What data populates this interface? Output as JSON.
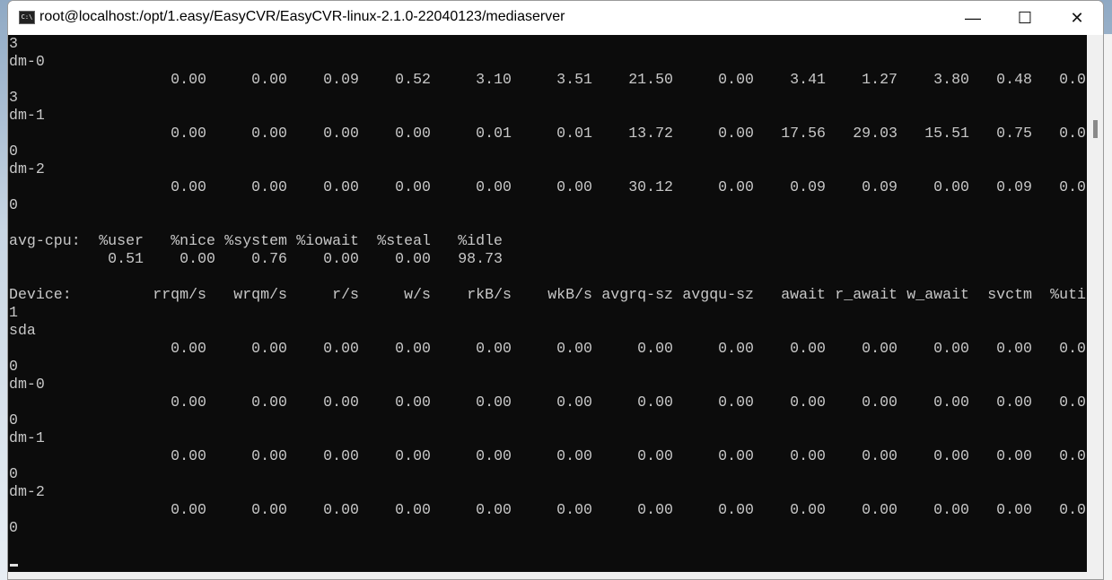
{
  "window": {
    "title": "root@localhost:/opt/1.easy/EasyCVR/EasyCVR-linux-2.1.0-22040123/mediaserver",
    "icon": "console-icon",
    "controls": {
      "minimize": "—",
      "maximize": "☐",
      "close": "✕"
    }
  },
  "terminal": {
    "background": "#0c0c0c",
    "foreground": "#c8c8c8",
    "lines": [
      {
        "type": "text",
        "text": "3"
      },
      {
        "type": "text",
        "text": "dm-0"
      },
      {
        "type": "io",
        "cells": [
          "0.00",
          "0.00",
          "0.09",
          "0.52",
          "3.10",
          "3.51",
          "21.50",
          "0.00",
          "3.41",
          "1.27",
          "3.80",
          "0.48",
          "0.0"
        ]
      },
      {
        "type": "text",
        "text": "3"
      },
      {
        "type": "text",
        "text": "dm-1"
      },
      {
        "type": "io",
        "cells": [
          "0.00",
          "0.00",
          "0.00",
          "0.00",
          "0.01",
          "0.01",
          "13.72",
          "0.00",
          "17.56",
          "29.03",
          "15.51",
          "0.75",
          "0.0"
        ]
      },
      {
        "type": "text",
        "text": "0"
      },
      {
        "type": "text",
        "text": "dm-2"
      },
      {
        "type": "io",
        "cells": [
          "0.00",
          "0.00",
          "0.00",
          "0.00",
          "0.00",
          "0.00",
          "30.12",
          "0.00",
          "0.09",
          "0.09",
          "0.00",
          "0.09",
          "0.0"
        ]
      },
      {
        "type": "text",
        "text": "0"
      },
      {
        "type": "text",
        "text": ""
      },
      {
        "type": "cpu",
        "label": "avg-cpu:",
        "cells": [
          "%user",
          "%nice",
          "%system",
          "%iowait",
          "%steal",
          "%idle"
        ]
      },
      {
        "type": "cpu",
        "label": "",
        "cells": [
          "0.51",
          "0.00",
          "0.76",
          "0.00",
          "0.00",
          "98.73"
        ]
      },
      {
        "type": "text",
        "text": ""
      },
      {
        "type": "io",
        "label": "Device:",
        "cells": [
          "rrqm/s",
          "wrqm/s",
          "r/s",
          "w/s",
          "rkB/s",
          "wkB/s",
          "avgrq-sz",
          "avgqu-sz",
          "await",
          "r_await",
          "w_await",
          "svctm",
          "%uti"
        ]
      },
      {
        "type": "text",
        "text": "1"
      },
      {
        "type": "text",
        "text": "sda"
      },
      {
        "type": "io",
        "cells": [
          "0.00",
          "0.00",
          "0.00",
          "0.00",
          "0.00",
          "0.00",
          "0.00",
          "0.00",
          "0.00",
          "0.00",
          "0.00",
          "0.00",
          "0.0"
        ]
      },
      {
        "type": "text",
        "text": "0"
      },
      {
        "type": "text",
        "text": "dm-0"
      },
      {
        "type": "io",
        "cells": [
          "0.00",
          "0.00",
          "0.00",
          "0.00",
          "0.00",
          "0.00",
          "0.00",
          "0.00",
          "0.00",
          "0.00",
          "0.00",
          "0.00",
          "0.0"
        ]
      },
      {
        "type": "text",
        "text": "0"
      },
      {
        "type": "text",
        "text": "dm-1"
      },
      {
        "type": "io",
        "cells": [
          "0.00",
          "0.00",
          "0.00",
          "0.00",
          "0.00",
          "0.00",
          "0.00",
          "0.00",
          "0.00",
          "0.00",
          "0.00",
          "0.00",
          "0.0"
        ]
      },
      {
        "type": "text",
        "text": "0"
      },
      {
        "type": "text",
        "text": "dm-2"
      },
      {
        "type": "io",
        "cells": [
          "0.00",
          "0.00",
          "0.00",
          "0.00",
          "0.00",
          "0.00",
          "0.00",
          "0.00",
          "0.00",
          "0.00",
          "0.00",
          "0.00",
          "0.0"
        ]
      },
      {
        "type": "text",
        "text": "0"
      }
    ]
  }
}
